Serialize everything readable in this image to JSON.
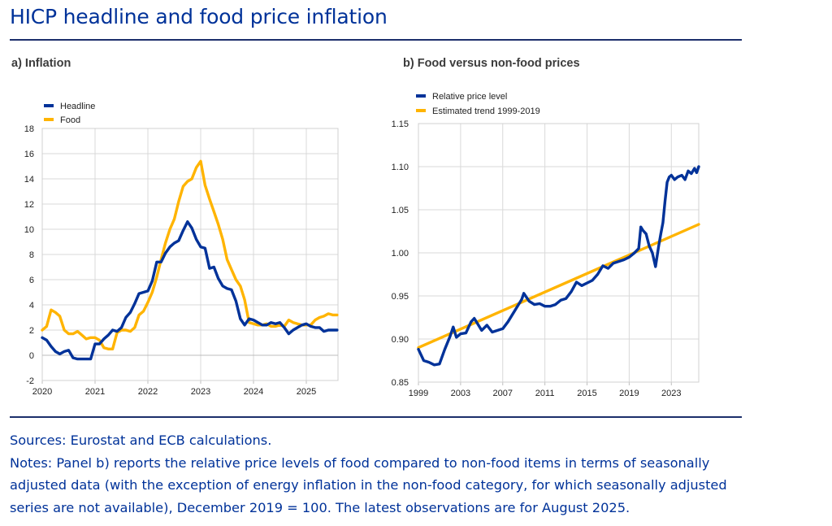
{
  "title": "HICP headline and food price inflation",
  "colors": {
    "blue": "#003299",
    "yellow": "#ffb400",
    "grid": "#d9d9d9",
    "rule": "#1c2f6b"
  },
  "sources": "Sources: Eurostat and ECB calculations.",
  "notes": "Notes: Panel b) reports the relative price levels of food compared to non-food items in terms of seasonally adjusted data (with the exception of energy inflation in the non-food category, for which seasonally adjusted series are not available), December 2019 = 100. The latest observations are for August 2025.",
  "chart_data": [
    {
      "panel_title": "a) Inflation",
      "type": "line",
      "xlim": [
        2020,
        2025.6
      ],
      "ylim": [
        -2,
        18
      ],
      "yticks": [
        "-2",
        "0",
        "2",
        "4",
        "6",
        "8",
        "10",
        "12",
        "14",
        "16",
        "18"
      ],
      "xticks": [
        "2020",
        "2021",
        "2022",
        "2023",
        "2024",
        "2025"
      ],
      "legend_position": "top-left",
      "series": [
        {
          "name": "Headline",
          "color": "#003299",
          "x": [
            2020.0,
            2020.083,
            2020.167,
            2020.25,
            2020.333,
            2020.417,
            2020.5,
            2020.583,
            2020.667,
            2020.75,
            2020.833,
            2020.917,
            2021.0,
            2021.083,
            2021.167,
            2021.25,
            2021.333,
            2021.417,
            2021.5,
            2021.583,
            2021.667,
            2021.75,
            2021.833,
            2021.917,
            2022.0,
            2022.083,
            2022.167,
            2022.25,
            2022.333,
            2022.417,
            2022.5,
            2022.583,
            2022.667,
            2022.75,
            2022.833,
            2022.917,
            2023.0,
            2023.083,
            2023.167,
            2023.25,
            2023.333,
            2023.417,
            2023.5,
            2023.583,
            2023.667,
            2023.75,
            2023.833,
            2023.917,
            2024.0,
            2024.083,
            2024.167,
            2024.25,
            2024.333,
            2024.417,
            2024.5,
            2024.583,
            2024.667,
            2024.75,
            2024.833,
            2024.917,
            2025.0,
            2025.083,
            2025.167,
            2025.25,
            2025.333,
            2025.417,
            2025.5,
            2025.583
          ],
          "values": [
            1.4,
            1.2,
            0.7,
            0.3,
            0.1,
            0.3,
            0.4,
            -0.2,
            -0.3,
            -0.3,
            -0.3,
            -0.3,
            0.9,
            0.9,
            1.3,
            1.6,
            2.0,
            1.9,
            2.2,
            3.0,
            3.4,
            4.1,
            4.9,
            5.0,
            5.1,
            5.9,
            7.4,
            7.4,
            8.1,
            8.6,
            8.9,
            9.1,
            9.9,
            10.6,
            10.1,
            9.2,
            8.6,
            8.5,
            6.9,
            7.0,
            6.1,
            5.5,
            5.3,
            5.2,
            4.3,
            2.9,
            2.4,
            2.9,
            2.8,
            2.6,
            2.4,
            2.4,
            2.6,
            2.5,
            2.6,
            2.2,
            1.7,
            2.0,
            2.2,
            2.4,
            2.5,
            2.3,
            2.2,
            2.2,
            1.9,
            2.0,
            2.0,
            2.0
          ]
        },
        {
          "name": "Food",
          "color": "#ffb400",
          "x": [
            2020.0,
            2020.083,
            2020.167,
            2020.25,
            2020.333,
            2020.417,
            2020.5,
            2020.583,
            2020.667,
            2020.75,
            2020.833,
            2020.917,
            2021.0,
            2021.083,
            2021.167,
            2021.25,
            2021.333,
            2021.417,
            2021.5,
            2021.583,
            2021.667,
            2021.75,
            2021.833,
            2021.917,
            2022.0,
            2022.083,
            2022.167,
            2022.25,
            2022.333,
            2022.417,
            2022.5,
            2022.583,
            2022.667,
            2022.75,
            2022.833,
            2022.917,
            2023.0,
            2023.083,
            2023.167,
            2023.25,
            2023.333,
            2023.417,
            2023.5,
            2023.583,
            2023.667,
            2023.75,
            2023.833,
            2023.917,
            2024.0,
            2024.083,
            2024.167,
            2024.25,
            2024.333,
            2024.417,
            2024.5,
            2024.583,
            2024.667,
            2024.75,
            2024.833,
            2024.917,
            2025.0,
            2025.083,
            2025.167,
            2025.25,
            2025.333,
            2025.417,
            2025.5,
            2025.583
          ],
          "values": [
            2.0,
            2.3,
            3.6,
            3.4,
            3.1,
            2.0,
            1.7,
            1.7,
            1.9,
            1.6,
            1.3,
            1.4,
            1.4,
            1.2,
            0.6,
            0.5,
            0.5,
            1.8,
            2.0,
            2.0,
            1.9,
            2.2,
            3.2,
            3.5,
            4.2,
            5.0,
            6.2,
            7.6,
            8.9,
            10.0,
            10.8,
            12.2,
            13.4,
            13.8,
            14.0,
            14.9,
            15.4,
            13.5,
            12.4,
            11.4,
            10.4,
            9.2,
            7.6,
            6.8,
            6.0,
            5.5,
            4.4,
            2.6,
            2.5,
            2.4,
            2.4,
            2.5,
            2.3,
            2.3,
            2.4,
            2.3,
            2.8,
            2.6,
            2.5,
            2.4,
            2.4,
            2.4,
            2.8,
            3.0,
            3.1,
            3.3,
            3.2,
            3.2
          ]
        }
      ]
    },
    {
      "panel_title": "b) Food versus non-food prices",
      "type": "line",
      "xlim": [
        1999,
        2025.6
      ],
      "ylim": [
        0.85,
        1.15
      ],
      "yticks": [
        "0.85",
        "0.90",
        "0.95",
        "1.00",
        "1.05",
        "1.10",
        "1.15"
      ],
      "xticks": [
        "1999",
        "2003",
        "2007",
        "2011",
        "2015",
        "2019",
        "2023"
      ],
      "legend_position": "top-left",
      "series": [
        {
          "name": "Relative price level",
          "color": "#003299",
          "x": [
            1999.0,
            1999.5,
            2000.0,
            2000.5,
            2001.0,
            2001.5,
            2002.0,
            2002.3,
            2002.6,
            2003.0,
            2003.5,
            2004.0,
            2004.3,
            2004.6,
            2005.0,
            2005.5,
            2006.0,
            2006.5,
            2007.0,
            2007.5,
            2008.0,
            2008.5,
            2008.8,
            2009.0,
            2009.5,
            2010.0,
            2010.5,
            2011.0,
            2011.5,
            2012.0,
            2012.5,
            2013.0,
            2013.5,
            2014.0,
            2014.5,
            2015.0,
            2015.5,
            2016.0,
            2016.5,
            2017.0,
            2017.5,
            2018.0,
            2018.5,
            2019.0,
            2019.5,
            2019.9,
            2020.1,
            2020.3,
            2020.6,
            2020.9,
            2021.2,
            2021.5,
            2021.8,
            2022.0,
            2022.2,
            2022.4,
            2022.6,
            2022.8,
            2023.0,
            2023.3,
            2023.6,
            2024.0,
            2024.3,
            2024.6,
            2024.9,
            2025.2,
            2025.4,
            2025.6
          ],
          "values": [
            0.888,
            0.875,
            0.873,
            0.87,
            0.871,
            0.888,
            0.903,
            0.914,
            0.902,
            0.906,
            0.907,
            0.92,
            0.924,
            0.918,
            0.91,
            0.916,
            0.908,
            0.91,
            0.912,
            0.92,
            0.93,
            0.94,
            0.946,
            0.953,
            0.944,
            0.94,
            0.941,
            0.938,
            0.938,
            0.94,
            0.945,
            0.947,
            0.955,
            0.966,
            0.962,
            0.965,
            0.968,
            0.975,
            0.985,
            0.982,
            0.988,
            0.99,
            0.992,
            0.995,
            1.0,
            1.005,
            1.03,
            1.026,
            1.022,
            1.008,
            1.0,
            0.984,
            1.008,
            1.022,
            1.035,
            1.06,
            1.082,
            1.088,
            1.09,
            1.085,
            1.088,
            1.09,
            1.085,
            1.095,
            1.092,
            1.098,
            1.093,
            1.1
          ]
        },
        {
          "name": "Estimated trend 1999-2019",
          "color": "#ffb400",
          "x": [
            1999.0,
            2025.6
          ],
          "values": [
            0.89,
            1.033
          ]
        }
      ]
    }
  ]
}
